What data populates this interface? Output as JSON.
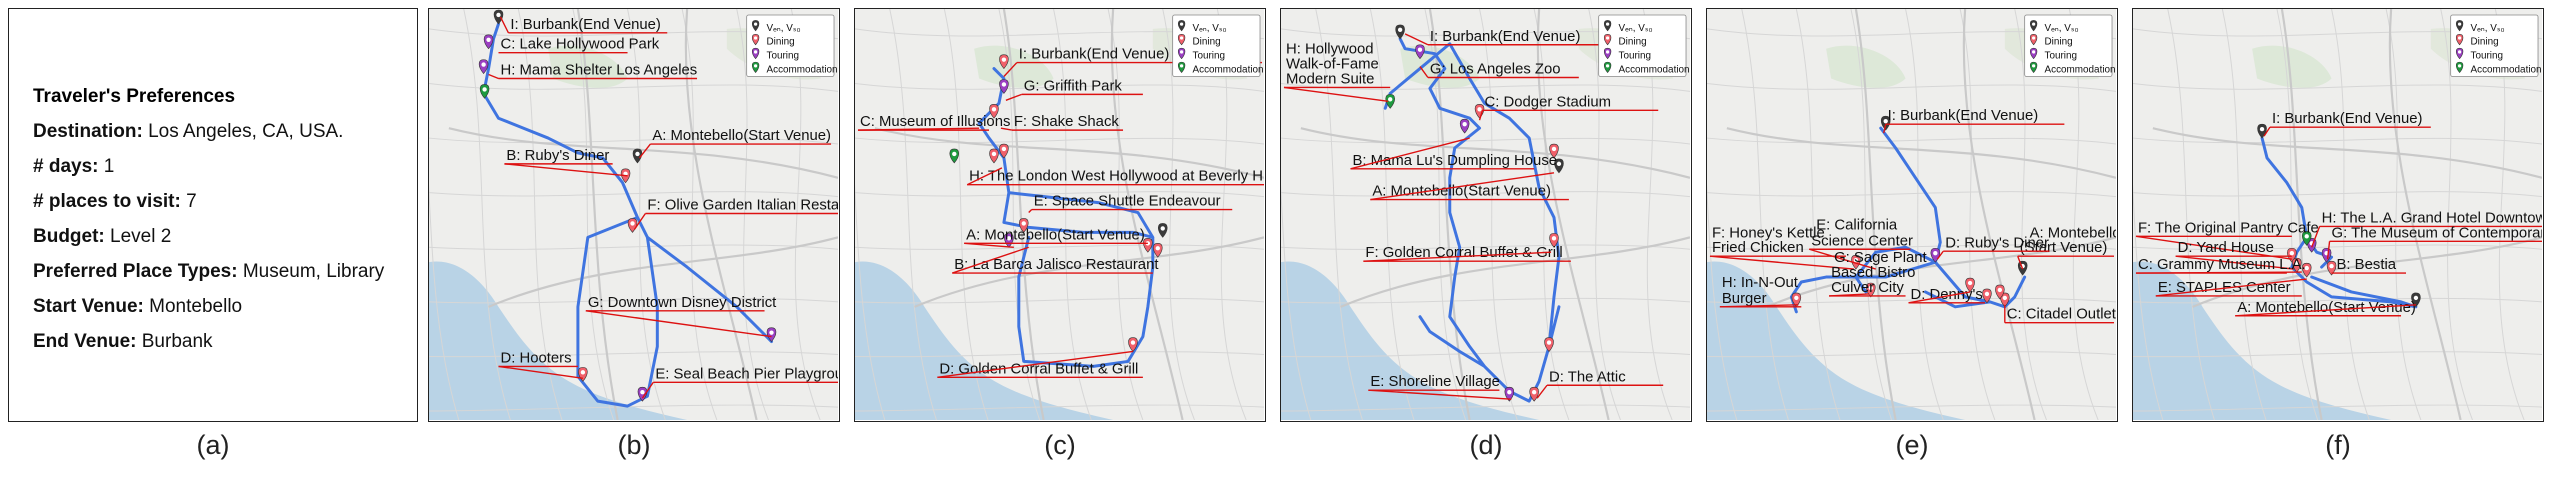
{
  "preferences": {
    "title": "Traveler's Preferences",
    "rows": [
      {
        "key": "Destination:",
        "value": "Los Angeles, CA, USA."
      },
      {
        "key": "# days:",
        "value": "1"
      },
      {
        "key": "# places to visit:",
        "value": "7"
      },
      {
        "key": "Budget:",
        "value": "Level 2"
      },
      {
        "key": "Preferred Place Types:",
        "value": "Museum, Library"
      },
      {
        "key": "Start Venue:",
        "value": " Montebello"
      },
      {
        "key": "End Venue:",
        "value": "Burbank"
      }
    ]
  },
  "legend": {
    "items": [
      {
        "label": "Vₑₙ, Vₛ₀",
        "color": "#3a3a3a"
      },
      {
        "label": "Dining",
        "color": "#f0606a"
      },
      {
        "label": "Touring",
        "color": "#9b3fc2"
      },
      {
        "label": "Accommodation",
        "color": "#1e9a3e"
      }
    ]
  },
  "captions": [
    "(a)",
    "(b)",
    "(c)",
    "(d)",
    "(e)",
    "(f)"
  ],
  "maps": [
    {
      "labels": [
        "I: Burbank(End Venue)",
        "C: Lake Hollywood Park",
        "H: Mama Shelter Los Angeles",
        "A: Montebello(Start Venue)",
        "B: Ruby's Diner",
        "F: Olive Garden Italian Restaurant",
        "G: Downtown Disney District",
        "D: Hooters",
        "E: Seal Beach Pier Playground"
      ]
    },
    {
      "labels": [
        "I: Burbank(End Venue)",
        "G: Griffith Park",
        "C: Museum of Illusions",
        "F: Shake Shack",
        "H: The London West Hollywood at Beverly Hills",
        "E: Space Shuttle Endeavour",
        "A: Montebello(Start Venue)",
        "B: La Barca Jalisco Restaurant",
        "D: Golden Corral Buffet & Grill"
      ]
    },
    {
      "labels": [
        "I: Burbank(End Venue)",
        "H: Hollywood",
        "Walk-of-Fame",
        "Modern Suite",
        "G: Los Angeles Zoo",
        "C: Dodger Stadium",
        "B: Mama Lu's Dumpling House",
        "A: Montebello(Start Venue)",
        "F: Golden Corral Buffet & Grill",
        "E: Shoreline Village",
        "D: The Attic"
      ]
    },
    {
      "labels": [
        "I: Burbank(End Venue)",
        "A: Montebello",
        "(Start Venue)",
        "F: Honey's Kettle",
        "Fried Chicken",
        "E: California",
        "Science Center",
        "D: Ruby's Diner",
        "G: Sage Plant",
        "Based Bistro",
        "Culver City",
        "H: In-N-Out",
        "Burger",
        "D: Denny's",
        "C: Citadel Outlets"
      ]
    },
    {
      "labels": [
        "I: Burbank(End Venue)",
        "F: The Original Pantry Cafe",
        "H: The L.A. Grand Hotel Downtown",
        "D: Yard House",
        "G: The Museum of Contemporary Art",
        "C: Grammy Museum L.A.",
        "B: Bestia",
        "E: STAPLES Center",
        "A: Montebello(Start Venue)"
      ]
    }
  ]
}
